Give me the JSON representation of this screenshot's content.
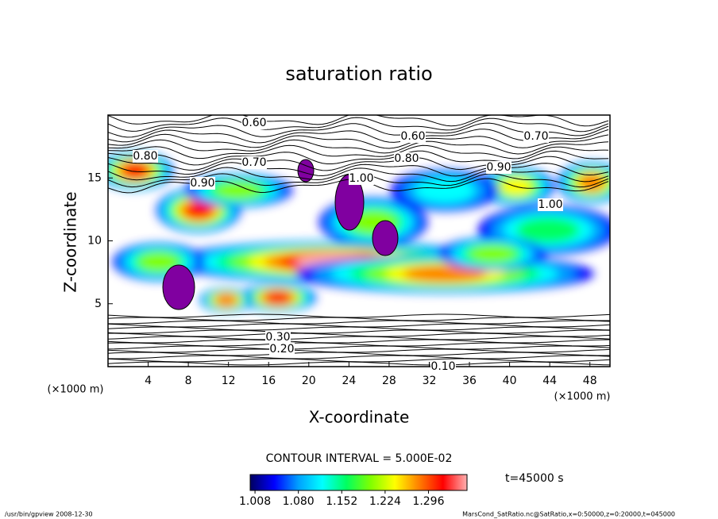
{
  "chart_data": {
    "type": "contour",
    "title": "saturation ratio",
    "x_label": "X-coordinate",
    "y_label": "Z-coordinate",
    "x_unit_label": "(×1000 m)",
    "xlim": [
      0,
      50
    ],
    "xticks": [
      4,
      8,
      12,
      16,
      20,
      24,
      28,
      32,
      36,
      40,
      44,
      48
    ],
    "ylim": [
      0,
      20
    ],
    "yticks": [
      5,
      10,
      15
    ],
    "contour_interval": "CONTOUR INTERVAL = 5.000E-02",
    "contour_labels": [
      "0.60",
      "0.70",
      "0.60",
      "0.80",
      "0.90",
      "1.00",
      "1.00",
      "0.80",
      "0.70",
      "0.90",
      "0.30",
      "0.20",
      "0.10"
    ],
    "time_label": "t=45000 s",
    "colorbar": {
      "lim": [
        1.0,
        1.36
      ],
      "ticks": [
        {
          "value": 1.008,
          "label": "1.008"
        },
        {
          "value": 1.08,
          "label": "1.080"
        },
        {
          "value": 1.152,
          "label": "1.152"
        },
        {
          "value": 1.224,
          "label": "1.224"
        },
        {
          "value": 1.296,
          "label": "1.296"
        }
      ],
      "colors": [
        "#000060",
        "#0000ff",
        "#00a0ff",
        "#00ffff",
        "#00ff60",
        "#80ff00",
        "#ffff00",
        "#ff8000",
        "#ff0000",
        "#ffb0b0"
      ]
    },
    "footer_left": "/usr/bin/gpview  2008-12-30",
    "footer_right": "MarsCond_SatRatio.nc@SatRatio,x=0:50000,z=0:20000,t=045000"
  }
}
